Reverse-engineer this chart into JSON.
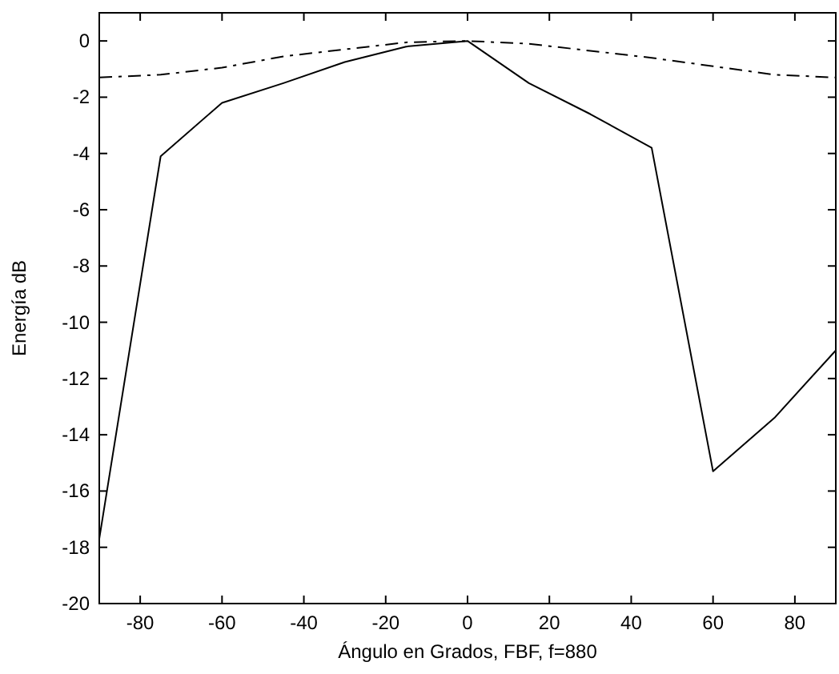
{
  "chart_data": {
    "type": "line",
    "xlabel": "Ángulo en Grados, FBF, f=880",
    "ylabel": "Energía dB",
    "xlim": [
      -90,
      90
    ],
    "ylim": [
      -20,
      1
    ],
    "xticks": [
      -80,
      -60,
      -40,
      -20,
      0,
      20,
      40,
      60,
      80
    ],
    "yticks": [
      -20,
      -18,
      -16,
      -14,
      -12,
      -10,
      -8,
      -6,
      -4,
      -2,
      0
    ],
    "x": [
      -90,
      -75,
      -60,
      -45,
      -30,
      -15,
      0,
      15,
      30,
      45,
      60,
      75,
      90
    ],
    "series": [
      {
        "color": "#000000",
        "line_style": "solid",
        "values": [
          -17.7,
          -4.1,
          -2.2,
          -1.5,
          -0.75,
          -0.2,
          0,
          -1.5,
          -2.6,
          -3.8,
          -15.3,
          -13.4,
          -11
        ]
      },
      {
        "color": "#000000",
        "line_style": "dashdot",
        "values": [
          -1.3,
          -1.2,
          -0.95,
          -0.55,
          -0.3,
          -0.05,
          0,
          -0.1,
          -0.35,
          -0.6,
          -0.9,
          -1.2,
          -1.3
        ]
      }
    ],
    "grid": false,
    "marker": "none"
  }
}
